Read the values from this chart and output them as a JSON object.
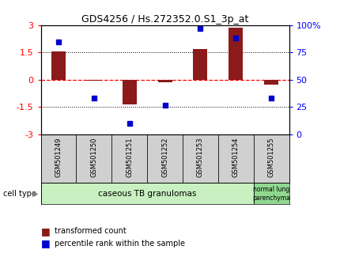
{
  "title": "GDS4256 / Hs.272352.0.S1_3p_at",
  "samples": [
    "GSM501249",
    "GSM501250",
    "GSM501251",
    "GSM501252",
    "GSM501253",
    "GSM501254",
    "GSM501255"
  ],
  "transformed_count": [
    1.55,
    -0.05,
    -1.35,
    -0.12,
    1.68,
    2.85,
    -0.25
  ],
  "percentile_rank": [
    85,
    33,
    10,
    27,
    97,
    88,
    33
  ],
  "bar_color": "#8B1A1A",
  "dot_color": "#0000CC",
  "group1_label": "caseous TB granulomas",
  "group1_count": 6,
  "group1_color": "#c8f0c0",
  "group2_label": "normal lung\nparenchyma",
  "group2_count": 1,
  "group2_color": "#90d890",
  "ylim": [
    -3,
    3
  ],
  "yticks_left": [
    -3,
    -1.5,
    0,
    1.5,
    3
  ],
  "yticks_right_pct": [
    0,
    25,
    50,
    75,
    100
  ],
  "legend_red": "transformed count",
  "legend_blue": "percentile rank within the sample",
  "cell_type_label": "cell type",
  "sample_box_color": "#d0d0d0",
  "bar_width": 0.4
}
